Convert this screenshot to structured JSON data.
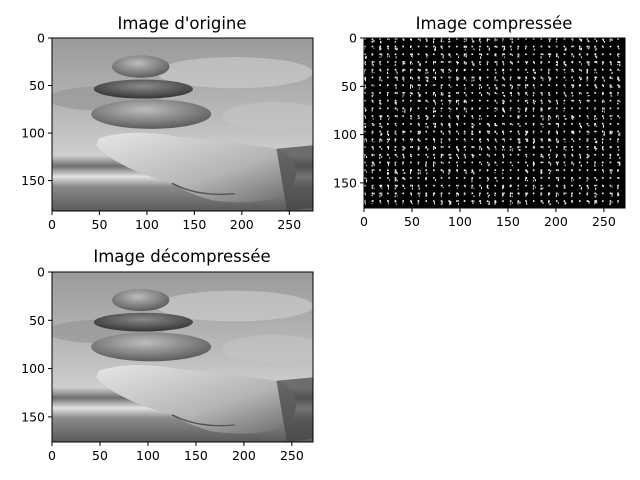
{
  "chart_data": [
    {
      "type": "image",
      "title": "Image d'origine",
      "xlim": [
        0,
        275
      ],
      "ylim": [
        182,
        0
      ],
      "xticks": [
        0,
        50,
        100,
        150,
        200,
        250
      ],
      "yticks": [
        0,
        50,
        100,
        150
      ],
      "render": "photo"
    },
    {
      "type": "image",
      "title": "Image compressée",
      "xlim": [
        0,
        272
      ],
      "ylim": [
        176,
        0
      ],
      "xticks": [
        0,
        50,
        100,
        150,
        200,
        250
      ],
      "yticks": [
        0,
        50,
        100,
        150
      ],
      "render": "dct-coefficients"
    },
    {
      "type": "image",
      "title": "Image décompressée",
      "xlim": [
        0,
        272
      ],
      "ylim": [
        176,
        0
      ],
      "xticks": [
        0,
        50,
        100,
        150,
        200,
        250
      ],
      "yticks": [
        0,
        50,
        100,
        150
      ],
      "render": "photo"
    }
  ],
  "colors": {
    "ink": "#000000",
    "background": "#ffffff",
    "compressed_bg": "#000000"
  }
}
